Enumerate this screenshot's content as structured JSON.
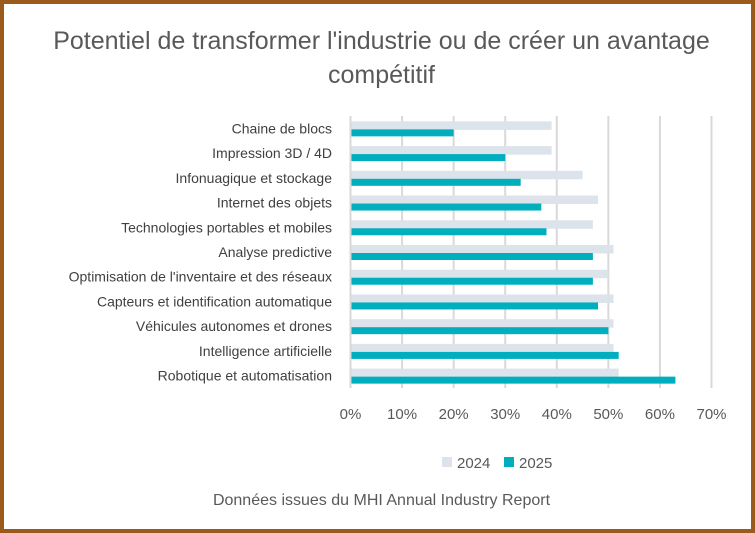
{
  "chart_data": {
    "type": "bar",
    "orientation": "horizontal",
    "title": "Potentiel de transformer l'industrie ou de créer un avantage compétitif",
    "footnote": "Données issues du MHI Annual Industry Report",
    "categories": [
      "Chaine de blocs",
      "Impression 3D / 4D",
      "Infonuagique et stockage",
      "Internet des objets",
      "Technologies portables et mobiles",
      "Analyse predictive",
      "Optimisation de l'inventaire et des réseaux",
      "Capteurs et identification automatique",
      "Véhicules autonomes et drones",
      "Intelligence artificielle",
      "Robotique et automatisation"
    ],
    "series": [
      {
        "name": "2024",
        "color": "#dce3eb",
        "values": [
          39,
          39,
          45,
          48,
          47,
          51,
          50,
          51,
          51,
          51,
          52
        ]
      },
      {
        "name": "2025",
        "color": "#00aebd",
        "values": [
          20,
          30,
          33,
          37,
          38,
          47,
          47,
          48,
          50,
          52,
          63
        ]
      }
    ],
    "xlim": [
      0,
      70
    ],
    "xticks": [
      "0%",
      "10%",
      "20%",
      "30%",
      "40%",
      "50%",
      "60%",
      "70%"
    ],
    "grid": true,
    "legend": "bottom"
  }
}
